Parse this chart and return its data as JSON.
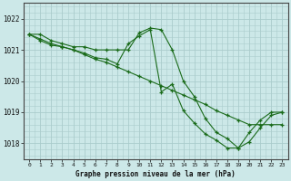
{
  "bg_color": "#cce8e8",
  "plot_bg_color": "#cce8e8",
  "grid_color": "#aacccc",
  "line_color": "#1a6b1a",
  "title": "Graphe pression niveau de la mer (hPa)",
  "ylim": [
    1017.5,
    1022.5
  ],
  "xlim": [
    -0.5,
    23.5
  ],
  "yticks": [
    1018,
    1019,
    1020,
    1021,
    1022
  ],
  "xticks": [
    0,
    1,
    2,
    3,
    4,
    5,
    6,
    7,
    8,
    9,
    10,
    11,
    12,
    13,
    14,
    15,
    16,
    17,
    18,
    19,
    20,
    21,
    22,
    23
  ],
  "series": [
    {
      "x": [
        0,
        1,
        2,
        3,
        4,
        5,
        6,
        7,
        8,
        9,
        10,
        11,
        12,
        13,
        14,
        15,
        16,
        17,
        18,
        19,
        20,
        21,
        22,
        23
      ],
      "y": [
        1021.5,
        1021.5,
        1021.3,
        1021.2,
        1021.1,
        1021.1,
        1021.0,
        1021.0,
        1021.0,
        1021.0,
        1021.55,
        1021.7,
        1021.65,
        1021.0,
        1020.0,
        1019.5,
        1018.8,
        1018.35,
        1018.15,
        1017.85,
        1018.35,
        1018.75,
        1019.0,
        1019.0
      ]
    },
    {
      "x": [
        0,
        1,
        2,
        3,
        4,
        5,
        6,
        7,
        8,
        9,
        10,
        11,
        12,
        13,
        14,
        15,
        16,
        17,
        18,
        19,
        20,
        21,
        22,
        23
      ],
      "y": [
        1021.5,
        1021.35,
        1021.2,
        1021.1,
        1021.0,
        1020.85,
        1020.7,
        1020.6,
        1020.45,
        1020.3,
        1020.15,
        1020.0,
        1019.85,
        1019.7,
        1019.55,
        1019.4,
        1019.25,
        1019.05,
        1018.9,
        1018.75,
        1018.6,
        1018.6,
        1018.6,
        1018.6
      ]
    },
    {
      "x": [
        0,
        1,
        2,
        3,
        4,
        5,
        6,
        7,
        8,
        9,
        10,
        11,
        12,
        13,
        14,
        15,
        16,
        17,
        18,
        19,
        20,
        21,
        22,
        23
      ],
      "y": [
        1021.5,
        1021.3,
        1021.15,
        1021.1,
        1021.0,
        1020.9,
        1020.75,
        1020.7,
        1020.55,
        1021.2,
        1021.45,
        1021.65,
        1019.65,
        1019.9,
        1019.05,
        1018.65,
        1018.3,
        1018.1,
        1017.85,
        1017.85,
        1018.05,
        1018.5,
        1018.9,
        1019.0
      ]
    }
  ],
  "figsize": [
    3.2,
    2.0
  ],
  "dpi": 100
}
